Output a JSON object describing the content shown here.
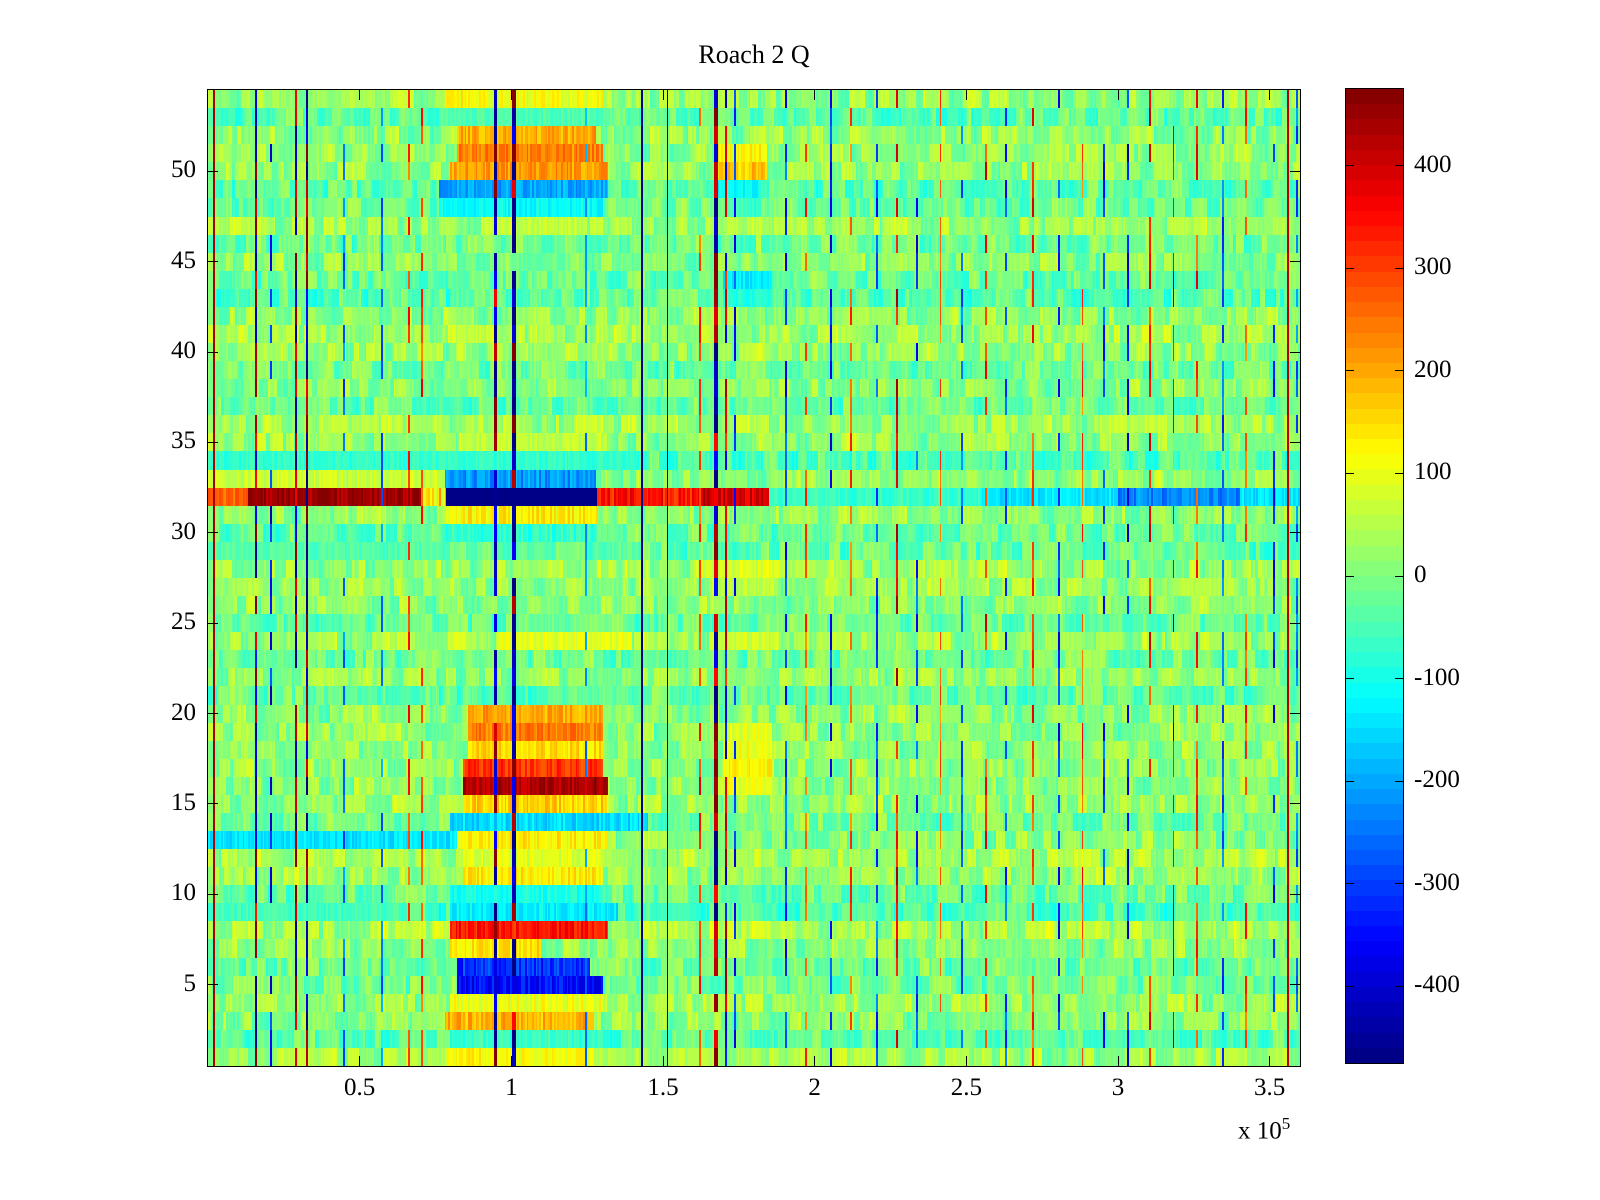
{
  "chart_data": {
    "type": "heatmap",
    "title": "Roach 2 Q",
    "x_axis": {
      "range": [
        0,
        3.6
      ],
      "unit_exponent_label": {
        "prefix": "x 10",
        "exp": "5"
      },
      "ticks": [
        {
          "v": 0.5,
          "label": "0.5"
        },
        {
          "v": 1,
          "label": "1"
        },
        {
          "v": 1.5,
          "label": "1.5"
        },
        {
          "v": 2,
          "label": "2"
        },
        {
          "v": 2.5,
          "label": "2.5"
        },
        {
          "v": 3,
          "label": "3"
        },
        {
          "v": 3.5,
          "label": "3.5"
        }
      ]
    },
    "y_axis": {
      "range": [
        0.5,
        54.5
      ],
      "rows": 54,
      "ticks": [
        {
          "v": 5,
          "label": "5"
        },
        {
          "v": 10,
          "label": "10"
        },
        {
          "v": 15,
          "label": "15"
        },
        {
          "v": 20,
          "label": "20"
        },
        {
          "v": 25,
          "label": "25"
        },
        {
          "v": 30,
          "label": "30"
        },
        {
          "v": 35,
          "label": "35"
        },
        {
          "v": 40,
          "label": "40"
        },
        {
          "v": 45,
          "label": "45"
        },
        {
          "v": 50,
          "label": "50"
        }
      ]
    },
    "colorbar": {
      "vmin": -475,
      "vmax": 475,
      "levels": 64,
      "colormap": "jet",
      "ticks": [
        {
          "v": 400,
          "label": "400"
        },
        {
          "v": 300,
          "label": "300"
        },
        {
          "v": 200,
          "label": "200"
        },
        {
          "v": 100,
          "label": "100"
        },
        {
          "v": 0,
          "label": "0"
        },
        {
          "v": -100,
          "label": "-100"
        },
        {
          "v": -200,
          "label": "-200"
        },
        {
          "v": -300,
          "label": "-300"
        },
        {
          "v": -400,
          "label": "-400"
        }
      ]
    },
    "heatmap": {
      "cols": 600,
      "noise": {
        "seed": 7,
        "run_amp": 55,
        "cell_amp": 22,
        "run_min": 2,
        "run_max": 6
      },
      "row_bias": [
        25,
        -35,
        10,
        25,
        -10,
        -15,
        15,
        35,
        -50,
        -20,
        25,
        35,
        10,
        -10,
        20,
        10,
        15,
        20,
        15,
        10,
        -25,
        15,
        -15,
        30,
        -20,
        10,
        20,
        25,
        -30,
        -25,
        15,
        0,
        15,
        -45,
        20,
        30,
        -20,
        10,
        -15,
        20,
        30,
        15,
        -35,
        -20,
        10,
        -15,
        25,
        -20,
        -30,
        15,
        20,
        15,
        -30,
        20
      ],
      "bands": [
        [
          54,
          0.78,
          1.3,
          110,
          40
        ],
        [
          53,
          0.78,
          1.3,
          -45,
          25
        ],
        [
          52,
          0.82,
          1.28,
          195,
          45
        ],
        [
          51,
          0.82,
          1.3,
          235,
          45
        ],
        [
          50,
          0.8,
          1.32,
          210,
          45
        ],
        [
          50,
          1.68,
          1.84,
          170,
          40
        ],
        [
          51,
          1.68,
          1.84,
          120,
          40
        ],
        [
          49,
          0.76,
          1.32,
          -200,
          40
        ],
        [
          49,
          1.68,
          1.82,
          -120,
          30
        ],
        [
          48,
          0.76,
          1.3,
          -110,
          30
        ],
        [
          47,
          0.9,
          1.25,
          60,
          30
        ],
        [
          44,
          1.7,
          1.86,
          -130,
          30
        ],
        [
          43,
          1.7,
          1.86,
          -90,
          30
        ],
        [
          35,
          0.85,
          1.3,
          60,
          30
        ],
        [
          34,
          0.0,
          1.45,
          -70,
          25
        ],
        [
          33,
          0.0,
          0.78,
          70,
          30
        ],
        [
          33,
          0.78,
          1.28,
          -215,
          45
        ],
        [
          32,
          0.0,
          0.13,
          265,
          40
        ],
        [
          32,
          0.13,
          0.7,
          452,
          45
        ],
        [
          32,
          0.7,
          0.785,
          150,
          90
        ],
        [
          32,
          0.785,
          1.285,
          -478,
          6
        ],
        [
          32,
          1.285,
          1.63,
          340,
          50
        ],
        [
          32,
          1.63,
          1.85,
          395,
          55
        ],
        [
          32,
          1.85,
          2.55,
          -70,
          30
        ],
        [
          32,
          2.55,
          3.0,
          -145,
          35
        ],
        [
          32,
          3.0,
          3.4,
          -235,
          45
        ],
        [
          32,
          3.4,
          3.6,
          -140,
          30
        ],
        [
          31,
          0.785,
          1.285,
          130,
          45
        ],
        [
          30,
          0.785,
          1.285,
          -75,
          35
        ],
        [
          29,
          0.0,
          0.8,
          -40,
          25
        ],
        [
          28,
          1.6,
          1.9,
          85,
          35
        ],
        [
          27,
          1.65,
          1.88,
          60,
          30
        ],
        [
          24,
          0.95,
          1.4,
          95,
          35
        ],
        [
          24,
          1.65,
          1.85,
          75,
          30
        ],
        [
          20,
          0.86,
          1.3,
          200,
          40
        ],
        [
          19,
          0.86,
          1.3,
          240,
          40
        ],
        [
          19,
          1.7,
          1.86,
          95,
          35
        ],
        [
          18,
          0.86,
          1.3,
          150,
          40
        ],
        [
          18,
          1.7,
          1.86,
          110,
          35
        ],
        [
          17,
          0.84,
          1.3,
          310,
          45
        ],
        [
          17,
          1.7,
          1.86,
          130,
          35
        ],
        [
          16,
          0.84,
          1.32,
          435,
          45
        ],
        [
          16,
          1.7,
          1.86,
          95,
          30
        ],
        [
          15,
          0.84,
          1.32,
          160,
          45
        ],
        [
          14,
          0.8,
          1.45,
          -150,
          40
        ],
        [
          13,
          0.0,
          0.82,
          -140,
          30
        ],
        [
          13,
          0.82,
          1.32,
          130,
          40
        ],
        [
          12,
          0.84,
          1.3,
          85,
          35
        ],
        [
          11,
          0.84,
          1.3,
          130,
          40
        ],
        [
          10,
          0.8,
          1.3,
          -95,
          35
        ],
        [
          9,
          0.0,
          0.6,
          -60,
          25
        ],
        [
          9,
          0.8,
          1.35,
          -130,
          35
        ],
        [
          8,
          0.8,
          1.32,
          340,
          45
        ],
        [
          7,
          0.8,
          1.1,
          140,
          40
        ],
        [
          6,
          0.82,
          1.26,
          -310,
          50
        ],
        [
          5,
          0.82,
          1.3,
          -345,
          55
        ],
        [
          4,
          0.8,
          1.3,
          100,
          40
        ],
        [
          3,
          0.78,
          1.27,
          190,
          45
        ],
        [
          2,
          0.8,
          1.3,
          -65,
          30
        ],
        [
          1,
          0.78,
          1.27,
          115,
          40
        ]
      ],
      "vlines": [
        [
          0.02,
          440,
          "full",
          0,
          0
        ],
        [
          0.155,
          420,
          "alt",
          0.45,
          0
        ],
        [
          0.205,
          -340,
          "seg",
          0,
          0
        ],
        [
          0.29,
          430,
          "alt",
          0.5,
          0
        ],
        [
          0.325,
          430,
          "alt",
          0.5,
          0
        ],
        [
          0.445,
          -260,
          "seg",
          0,
          0
        ],
        [
          0.57,
          -250,
          "seg",
          0,
          0
        ],
        [
          0.66,
          300,
          "seg",
          0,
          0
        ],
        [
          0.7,
          300,
          "seg",
          0,
          0
        ],
        [
          0.94,
          440,
          "alt",
          0.25,
          1
        ],
        [
          1.0,
          440,
          "alt",
          0.25,
          1
        ],
        [
          1.24,
          -220,
          "seg",
          0,
          0
        ],
        [
          1.43,
          -470,
          "full",
          0,
          0
        ],
        [
          1.515,
          -470,
          "full",
          0,
          0
        ],
        [
          1.62,
          300,
          "seg",
          0,
          0
        ],
        [
          1.665,
          430,
          "alt",
          0.75,
          1
        ],
        [
          1.705,
          380,
          "alt",
          0.6,
          0
        ],
        [
          1.735,
          -350,
          "seg",
          0,
          0
        ],
        [
          1.9,
          -300,
          "seg",
          0,
          0
        ],
        [
          1.97,
          280,
          "seg",
          0,
          0
        ],
        [
          2.05,
          -330,
          "seg",
          0,
          0
        ],
        [
          2.12,
          270,
          "seg",
          0,
          0
        ],
        [
          2.2,
          -290,
          "seg",
          0,
          0
        ],
        [
          2.27,
          360,
          "seg",
          0,
          0
        ],
        [
          2.335,
          -310,
          "seg",
          0,
          0
        ],
        [
          2.41,
          270,
          "seg",
          0,
          0
        ],
        [
          2.485,
          -260,
          "seg",
          0,
          0
        ],
        [
          2.56,
          330,
          "seg",
          0,
          0
        ],
        [
          2.63,
          -290,
          "seg",
          0,
          0
        ],
        [
          2.72,
          310,
          "seg",
          0,
          0
        ],
        [
          2.8,
          -330,
          "seg",
          0,
          0
        ],
        [
          2.88,
          290,
          "seg",
          0,
          0
        ],
        [
          2.95,
          -310,
          "seg",
          0,
          0
        ],
        [
          3.03,
          -360,
          "seg",
          0,
          0
        ],
        [
          3.1,
          330,
          "seg",
          0,
          0
        ],
        [
          3.18,
          -290,
          "seg",
          0,
          0
        ],
        [
          3.26,
          310,
          "seg",
          0,
          0
        ],
        [
          3.34,
          -270,
          "seg",
          0,
          0
        ],
        [
          3.42,
          290,
          "seg",
          0,
          0
        ],
        [
          3.51,
          -310,
          "seg",
          0,
          0
        ],
        [
          3.555,
          430,
          "full",
          0,
          0
        ],
        [
          3.585,
          -260,
          "seg",
          0,
          0
        ]
      ]
    }
  }
}
